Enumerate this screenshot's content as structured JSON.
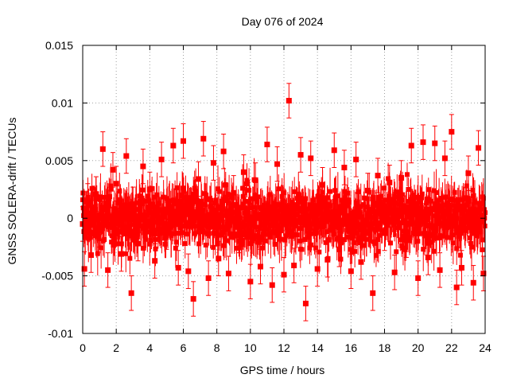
{
  "chart_data": {
    "type": "scatter",
    "title": "Day 076 of 2024",
    "xlabel": "GPS time / hours",
    "ylabel": "GNSS SOLERA-drift / TECUs",
    "xlim": [
      0,
      24
    ],
    "ylim": [
      -0.01,
      0.015
    ],
    "grid": true,
    "x_ticks": [
      0,
      2,
      4,
      6,
      8,
      10,
      12,
      14,
      16,
      18,
      20,
      22,
      24
    ],
    "x_tick_labels": [
      "0",
      "2",
      "4",
      "6",
      "8",
      "10",
      "12",
      "14",
      "16",
      "18",
      "20",
      "22",
      "24"
    ],
    "y_ticks": [
      -0.01,
      -0.005,
      0,
      0.005,
      0.01,
      0.015
    ],
    "y_tick_labels": [
      "-0.01",
      "-0.005",
      "0",
      "0.005",
      "0.01",
      "0.015"
    ],
    "series": [
      {
        "name": "SOLERA drift",
        "color": "#ff0000",
        "marker": "square",
        "error_bars": true,
        "typical_error": 0.0015,
        "x": [
          0.0,
          0.1,
          0.2,
          0.3,
          0.5,
          0.8,
          1.0,
          1.2,
          1.5,
          1.8,
          2.0,
          2.3,
          2.6,
          2.9,
          3.0,
          3.3,
          3.6,
          4.0,
          4.3,
          4.7,
          5.0,
          5.4,
          5.7,
          6.0,
          6.3,
          6.6,
          6.9,
          7.2,
          7.5,
          7.8,
          8.1,
          8.4,
          8.7,
          9.0,
          9.3,
          9.6,
          10.0,
          10.3,
          10.6,
          11.0,
          11.3,
          11.6,
          12.0,
          12.3,
          12.6,
          13.0,
          13.3,
          13.6,
          14.0,
          14.3,
          14.6,
          15.0,
          15.3,
          15.6,
          16.0,
          16.3,
          16.6,
          17.0,
          17.3,
          17.6,
          18.0,
          18.3,
          18.6,
          19.0,
          19.3,
          19.6,
          20.0,
          20.3,
          20.6,
          21.0,
          21.3,
          21.6,
          22.0,
          22.3,
          22.6,
          23.0,
          23.3,
          23.6,
          23.9
        ],
        "y": [
          -0.0005,
          -0.0044,
          0.0008,
          0.0015,
          -0.0032,
          0.0021,
          -0.001,
          0.006,
          -0.0045,
          0.0042,
          0.003,
          -0.0031,
          0.0054,
          -0.0065,
          0.0012,
          -0.0022,
          0.0045,
          0.0025,
          -0.0037,
          0.0051,
          -0.0012,
          0.0063,
          -0.0043,
          0.0067,
          -0.0046,
          -0.007,
          0.0034,
          0.0069,
          -0.0052,
          0.0048,
          -0.0035,
          0.0058,
          -0.0048,
          0.0022,
          -0.0015,
          0.004,
          -0.0055,
          0.0033,
          -0.0042,
          0.0064,
          -0.0058,
          0.0047,
          -0.0049,
          0.0102,
          -0.0041,
          0.0055,
          -0.0074,
          0.0052,
          -0.0044,
          0.0029,
          -0.0036,
          0.0059,
          -0.0027,
          0.0044,
          -0.0046,
          0.0051,
          -0.0038,
          0.0024,
          -0.0065,
          0.0037,
          -0.0013,
          0.0031,
          -0.0047,
          0.0035,
          -0.0019,
          0.0063,
          -0.0052,
          0.0066,
          -0.0034,
          0.0065,
          -0.0045,
          0.0052,
          0.0075,
          -0.006,
          -0.0043,
          0.0039,
          -0.0056,
          0.0061,
          -0.0048
        ]
      }
    ]
  }
}
